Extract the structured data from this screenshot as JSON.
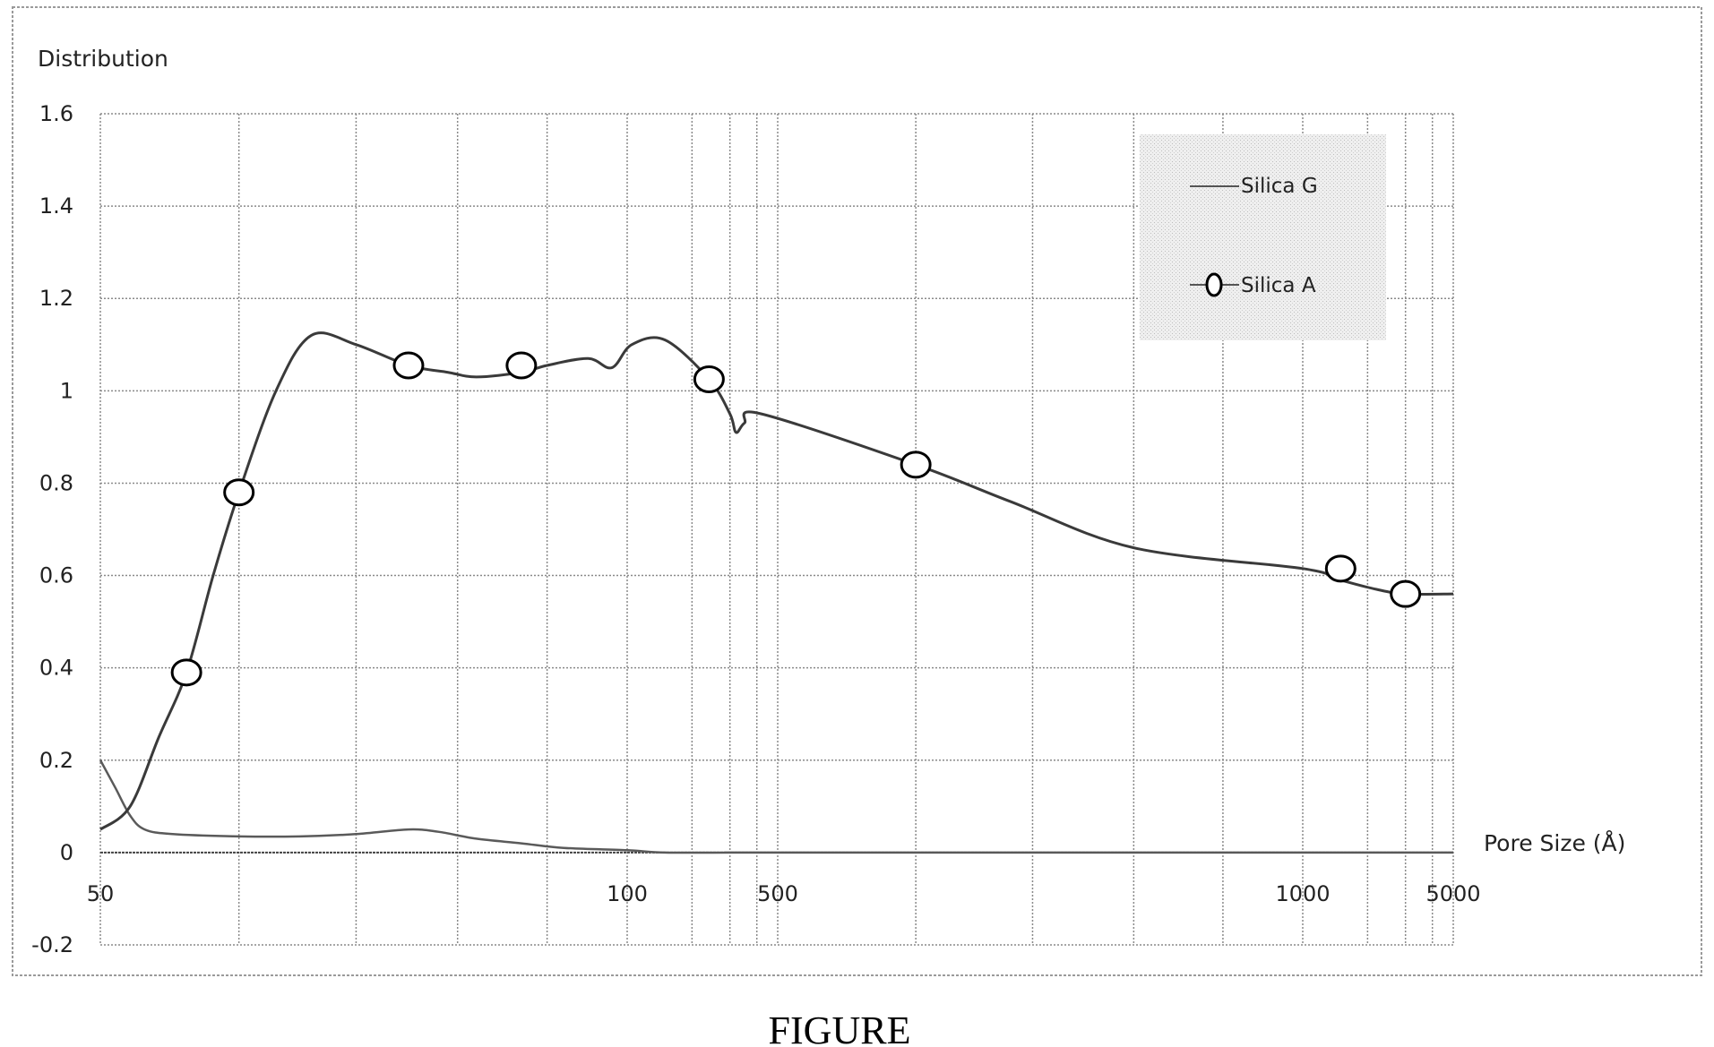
{
  "figure": {
    "caption": "FIGURE"
  },
  "chart_data": {
    "type": "line",
    "title": "",
    "ylabel": "Distribution",
    "xlabel": "Pore Size (Å)",
    "ylim": [
      -0.2,
      1.6
    ],
    "y_ticks": [
      1.6,
      1.4,
      1.2,
      1,
      0.8,
      0.6,
      0.4,
      0.2,
      0,
      -0.2
    ],
    "y_tick_labels": [
      "1.6",
      "1.4",
      "1.2",
      "1",
      "0.8",
      "0.6",
      "0.4",
      "0.2",
      "0",
      "-0.2"
    ],
    "x_tick_labels": [
      "50",
      "100",
      "500",
      "1000",
      "5000"
    ],
    "x_scale": "logarithmic",
    "grid": true,
    "legend": {
      "position": "top-right",
      "entries": [
        {
          "name": "Silica G",
          "marker": "none"
        },
        {
          "name": "Silica A",
          "marker": "open-circle"
        }
      ]
    },
    "series": [
      {
        "name": "Silica G",
        "x": [
          50,
          51,
          52,
          53,
          55,
          60,
          65,
          70,
          75,
          78,
          82,
          87,
          92,
          100,
          150,
          300,
          500,
          1000,
          2000,
          5000
        ],
        "y": [
          0.2,
          0.14,
          0.08,
          0.05,
          0.04,
          0.035,
          0.035,
          0.04,
          0.05,
          0.045,
          0.03,
          0.02,
          0.01,
          0.005,
          0.0,
          0.0,
          0.0,
          0.0,
          0.0,
          0.0
        ]
      },
      {
        "name": "Silica A",
        "x": [
          50,
          52,
          54,
          56,
          58,
          60,
          63,
          66,
          70,
          75,
          79,
          82,
          87,
          90,
          95,
          98,
          105,
          150,
          240,
          300,
          320,
          350,
          420,
          600,
          680,
          800,
          1000,
          1500,
          2200,
          3000,
          5000
        ],
        "y": [
          0.05,
          0.1,
          0.25,
          0.39,
          0.6,
          0.78,
          1.0,
          1.12,
          1.1,
          1.055,
          1.04,
          1.03,
          1.04,
          1.055,
          1.07,
          1.05,
          1.1,
          1.11,
          1.025,
          0.95,
          0.91,
          0.93,
          0.95,
          0.84,
          0.76,
          0.66,
          0.615,
          0.59,
          0.57,
          0.56,
          0.56
        ]
      }
    ],
    "markers": {
      "series": "Silica A",
      "x": [
        56,
        60,
        75,
        87,
        240,
        600,
        1500,
        3000
      ],
      "y": [
        0.39,
        0.78,
        1.055,
        1.055,
        1.025,
        0.84,
        0.615,
        0.56
      ]
    }
  }
}
